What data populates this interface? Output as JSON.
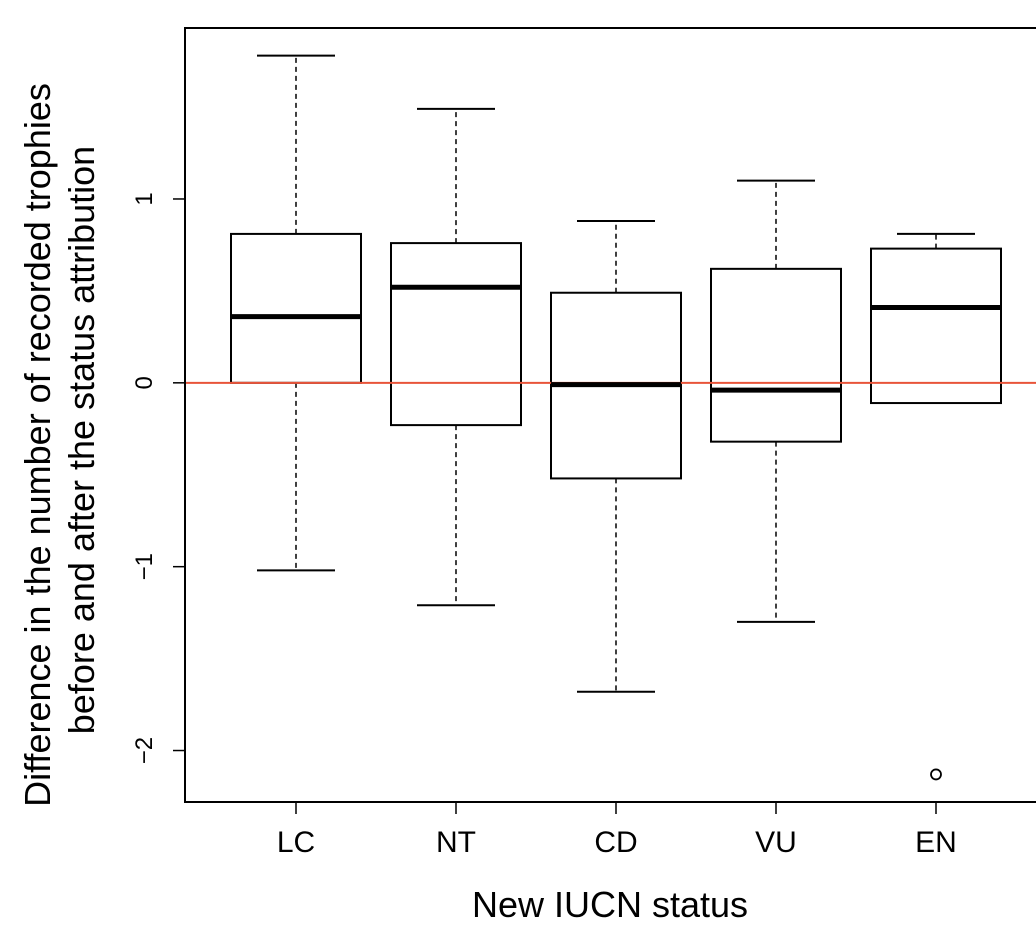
{
  "chart_data": {
    "type": "boxplot",
    "title": "",
    "xlabel": "New IUCN status",
    "ylabel_lines": [
      "Difference in the number of recorded trophies",
      "before and after the status attribution"
    ],
    "categories": [
      "LC",
      "NT",
      "CD",
      "VU",
      "EN"
    ],
    "y_ticks": [
      {
        "value": -2,
        "label": "−2"
      },
      {
        "value": -1,
        "label": "−1"
      },
      {
        "value": 0,
        "label": "0"
      },
      {
        "value": 1,
        "label": "1"
      }
    ],
    "ylim": [
      -2.28,
      1.93
    ],
    "reference_line": {
      "y": 0,
      "color": "#e8543a"
    },
    "boxes": [
      {
        "category": "LC",
        "whisker_low": -1.02,
        "q1": 0.0,
        "median": 0.36,
        "q3": 0.81,
        "whisker_high": 1.78,
        "outliers": []
      },
      {
        "category": "NT",
        "whisker_low": -1.21,
        "q1": -0.23,
        "median": 0.52,
        "q3": 0.76,
        "whisker_high": 1.49,
        "outliers": []
      },
      {
        "category": "CD",
        "whisker_low": -1.68,
        "q1": -0.52,
        "median": -0.01,
        "q3": 0.49,
        "whisker_high": 0.88,
        "outliers": []
      },
      {
        "category": "VU",
        "whisker_low": -1.3,
        "q1": -0.32,
        "median": -0.04,
        "q3": 0.62,
        "whisker_high": 1.1,
        "outliers": []
      },
      {
        "category": "EN",
        "whisker_low": -0.11,
        "q1": -0.11,
        "median": 0.41,
        "q3": 0.73,
        "whisker_high": 0.81,
        "outliers": [
          -2.13
        ]
      }
    ],
    "grid": false,
    "legend": "none",
    "colors": {
      "box_stroke": "#000000",
      "box_fill": "#ffffff",
      "reference_line": "#e8543a"
    }
  }
}
